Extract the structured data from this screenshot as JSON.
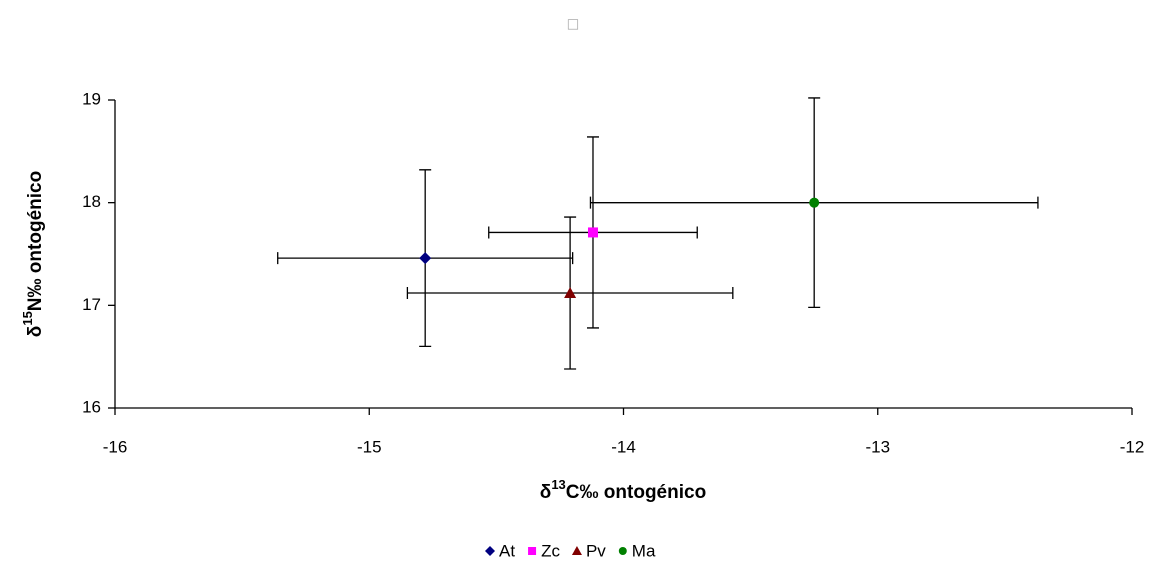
{
  "chart_data": {
    "type": "scatter",
    "title": "□",
    "xlabel": [
      "δ",
      "13",
      "C‰ ontogénico"
    ],
    "ylabel": [
      "δ",
      "15",
      "N‰ ontogénico"
    ],
    "xlim": [
      -16,
      -12
    ],
    "xticks": [
      -16,
      -15,
      -14,
      -13,
      -12
    ],
    "ylim": [
      16,
      19
    ],
    "yticks": [
      16,
      17,
      18,
      19
    ],
    "grid": false,
    "legend": "bottom",
    "series": [
      {
        "name": "At",
        "color": "#000080",
        "marker": "diamond",
        "x": [
          -14.78
        ],
        "values": [
          17.46
        ],
        "xerr": [
          0.58
        ],
        "yerr": [
          0.86
        ]
      },
      {
        "name": "Zc",
        "color": "#ff00ff",
        "marker": "square",
        "x": [
          -14.12
        ],
        "values": [
          17.71
        ],
        "xerr": [
          0.41
        ],
        "yerr": [
          0.93
        ]
      },
      {
        "name": "Pv",
        "color": "#800000",
        "marker": "triangle",
        "x": [
          -14.21
        ],
        "values": [
          17.12
        ],
        "xerr": [
          0.64
        ],
        "yerr": [
          0.74
        ]
      },
      {
        "name": "Ma",
        "color": "#008000",
        "marker": "circle",
        "x": [
          -13.25
        ],
        "values": [
          18.0
        ],
        "xerr": [
          0.88
        ],
        "yerr": [
          1.02
        ]
      }
    ]
  }
}
